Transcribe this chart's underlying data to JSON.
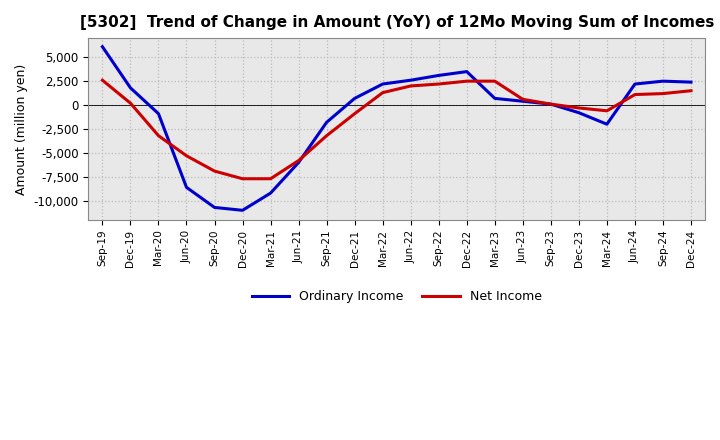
{
  "title": "[5302]  Trend of Change in Amount (YoY) of 12Mo Moving Sum of Incomes",
  "ylabel": "Amount (million yen)",
  "x_labels": [
    "Sep-19",
    "Dec-19",
    "Mar-20",
    "Jun-20",
    "Sep-20",
    "Dec-20",
    "Mar-21",
    "Jun-21",
    "Sep-21",
    "Dec-21",
    "Mar-22",
    "Jun-22",
    "Sep-22",
    "Dec-22",
    "Mar-23",
    "Jun-23",
    "Sep-23",
    "Dec-23",
    "Mar-24",
    "Jun-24",
    "Sep-24",
    "Dec-24"
  ],
  "ordinary_income": [
    6100,
    1800,
    -900,
    -8600,
    -10700,
    -11000,
    -9200,
    -6000,
    -1800,
    700,
    2200,
    2600,
    3100,
    3500,
    700,
    400,
    100,
    -800,
    -2000,
    2200,
    2500,
    2400
  ],
  "net_income": [
    2600,
    200,
    -3200,
    -5300,
    -6900,
    -7700,
    -7700,
    -5800,
    -3200,
    -900,
    1300,
    2000,
    2200,
    2500,
    2500,
    600,
    100,
    -300,
    -600,
    1100,
    1200,
    1500
  ],
  "ordinary_color": "#0000cc",
  "net_color": "#cc0000",
  "background_color": "#ffffff",
  "grid_color": "#bbbbbb",
  "ylim": [
    -12000,
    7000
  ],
  "yticks": [
    -10000,
    -7500,
    -5000,
    -2500,
    0,
    2500,
    5000
  ]
}
